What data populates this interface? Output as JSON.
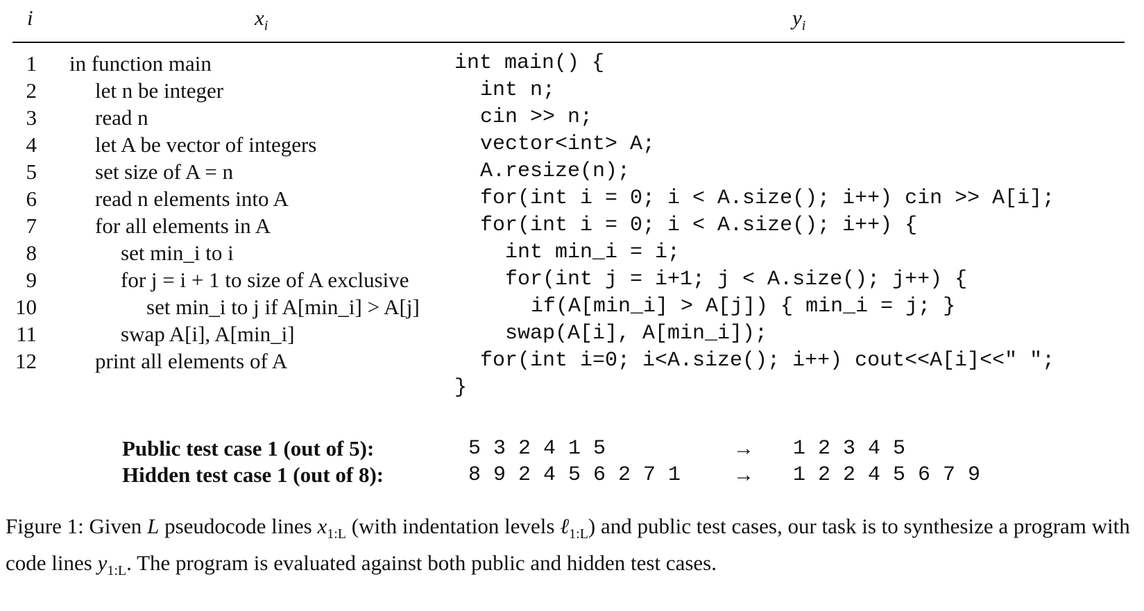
{
  "header": {
    "col_i": "i",
    "col_x": "x",
    "col_x_sub": "i",
    "col_y": "y",
    "col_y_sub": "i"
  },
  "rows": [
    {
      "num": "1",
      "pseudo": "in function main",
      "code": "int main() {"
    },
    {
      "num": "2",
      "pseudo": "let n be integer",
      "code": "int n;"
    },
    {
      "num": "3",
      "pseudo": "read n",
      "code": "cin >> n;"
    },
    {
      "num": "4",
      "pseudo": "let A be vector of integers",
      "code": "vector<int> A;"
    },
    {
      "num": "5",
      "pseudo": "set size of A = n",
      "code": "A.resize(n);"
    },
    {
      "num": "6",
      "pseudo": "read n elements into A",
      "code": "for(int i = 0; i < A.size(); i++) cin >> A[i];"
    },
    {
      "num": "7",
      "pseudo": "for all elements in A",
      "code": "for(int i = 0; i < A.size(); i++) {"
    },
    {
      "num": "8",
      "pseudo": "set min_i to i",
      "code": "int min_i = i;"
    },
    {
      "num": "9",
      "pseudo": "for j = i + 1 to size of A exclusive",
      "code": "for(int j = i+1; j < A.size(); j++) {"
    },
    {
      "num": "10",
      "pseudo": "set min_i to j if A[min_i] > A[j]",
      "code": "if(A[min_i] > A[j]) { min_i = j; }"
    },
    {
      "num": "11",
      "pseudo": "swap A[i], A[min_i]",
      "code": "swap(A[i], A[min_i]);"
    },
    {
      "num": "12",
      "pseudo": "print all elements of A",
      "code": "for(int i=0; i<A.size(); i++) cout<<A[i]<<\" \";"
    }
  ],
  "closing_brace": "}",
  "tests": [
    {
      "label": "Public test case 1 (out of 5):",
      "input": "5 3 2 4 1 5",
      "arrow": "→",
      "output": "1 2 3 4 5"
    },
    {
      "label": "Hidden test case 1 (out of 8):",
      "input": "8 9 2 4 5 6 2 7 1",
      "arrow": "→",
      "output": "1 2 2 4 5 6 7 9"
    }
  ],
  "caption": {
    "t1": "Figure 1: Given ",
    "v1": "L",
    "t2": " pseudocode lines ",
    "v2": "x",
    "s2": "1:L",
    "t3": " (with indentation levels ",
    "v3": "ℓ",
    "s3": "1:L",
    "t4": ") and public test cases, our task is to synthesize a program with code lines ",
    "v4": "y",
    "s4": "1:L",
    "t5": ". The program is evaluated against both public and hidden test cases."
  }
}
